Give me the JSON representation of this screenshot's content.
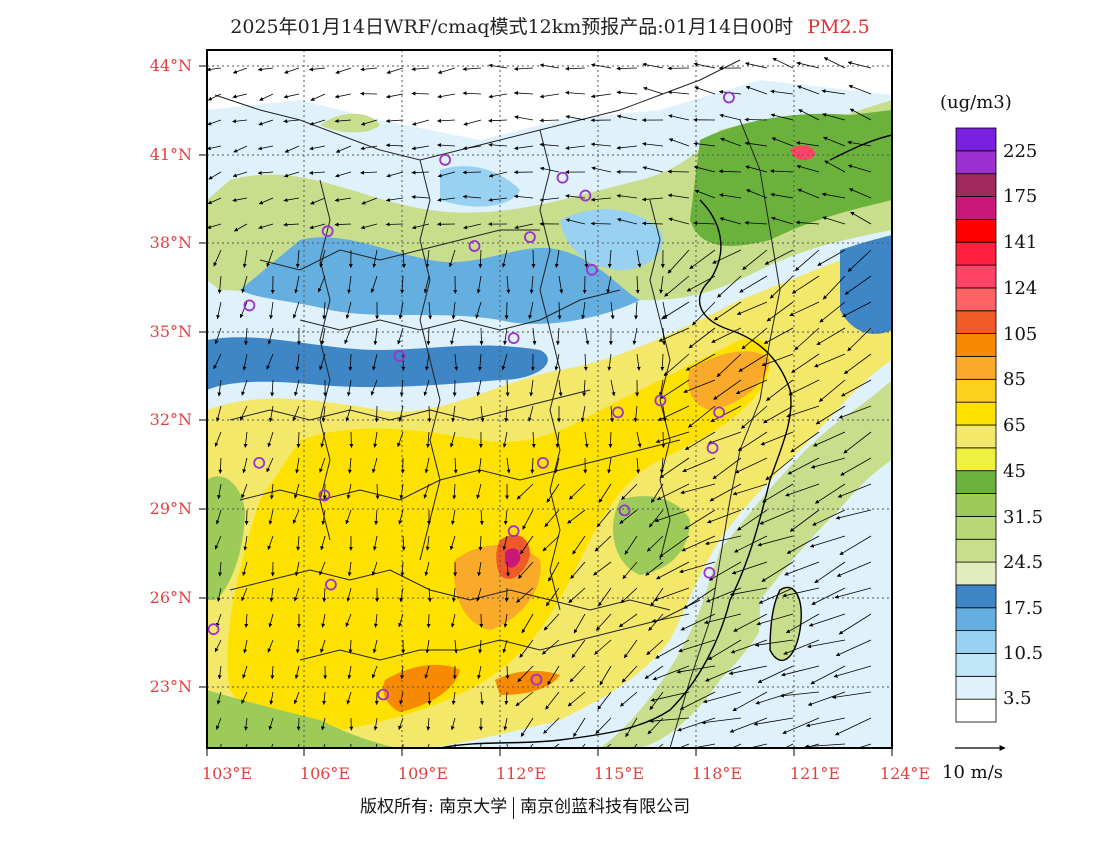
{
  "title": {
    "text": "2025年01月14日WRF/cmaq模式12km预报产品:01月14日00时",
    "pollutant": "PM2.5"
  },
  "map": {
    "lat_labels": [
      "44°N",
      "41°N",
      "38°N",
      "35°N",
      "32°N",
      "29°N",
      "26°N",
      "23°N"
    ],
    "lon_labels": [
      "103°E",
      "106°E",
      "109°E",
      "112°E",
      "115°E",
      "118°E",
      "121°E",
      "124°E"
    ],
    "lat_range": [
      21,
      44.5
    ],
    "lon_range": [
      103,
      124
    ],
    "colors": {
      "frame": "#000000",
      "axis_labels": "#e04040",
      "station_markers": "#9933cc",
      "wind_arrows": "#000000",
      "borders": "#222222"
    }
  },
  "stations": [
    {
      "lon": 119.0,
      "lat": 42.9
    },
    {
      "lon": 110.3,
      "lat": 40.8
    },
    {
      "lon": 113.9,
      "lat": 40.2
    },
    {
      "lon": 114.6,
      "lat": 39.6
    },
    {
      "lon": 106.7,
      "lat": 38.4
    },
    {
      "lon": 111.2,
      "lat": 37.9
    },
    {
      "lon": 112.9,
      "lat": 38.2
    },
    {
      "lon": 114.8,
      "lat": 37.1
    },
    {
      "lon": 104.3,
      "lat": 35.9
    },
    {
      "lon": 112.4,
      "lat": 34.8
    },
    {
      "lon": 108.9,
      "lat": 34.2
    },
    {
      "lon": 115.6,
      "lat": 32.3
    },
    {
      "lon": 116.9,
      "lat": 32.7
    },
    {
      "lon": 118.7,
      "lat": 32.3
    },
    {
      "lon": 118.5,
      "lat": 31.1
    },
    {
      "lon": 104.6,
      "lat": 30.6
    },
    {
      "lon": 106.6,
      "lat": 29.5
    },
    {
      "lon": 113.3,
      "lat": 30.6
    },
    {
      "lon": 115.8,
      "lat": 29.0
    },
    {
      "lon": 112.4,
      "lat": 28.3
    },
    {
      "lon": 106.8,
      "lat": 26.5
    },
    {
      "lon": 118.4,
      "lat": 26.9
    },
    {
      "lon": 103.2,
      "lat": 25.0
    },
    {
      "lon": 108.4,
      "lat": 22.8
    },
    {
      "lon": 113.1,
      "lat": 23.3
    }
  ],
  "colorbar": {
    "unit": "(ug/m3)",
    "colors": [
      "#ffffff",
      "#dff2fb",
      "#bfe5f7",
      "#98d1f2",
      "#64afe0",
      "#3f86c6",
      "#e2ecc0",
      "#c8de8c",
      "#b8d878",
      "#9ccb59",
      "#6ab23c",
      "#f0f040",
      "#f4e86a",
      "#ffe100",
      "#fcd21e",
      "#f9aa2a",
      "#f78a00",
      "#ef5a28",
      "#ff6262",
      "#ff4466",
      "#ff2040",
      "#ff0000",
      "#c8187a",
      "#a0285a",
      "#9b2fd0",
      "#7a20e0"
    ],
    "labels": [
      "3.5",
      "10.5",
      "17.5",
      "24.5",
      "31.5",
      "45",
      "65",
      "85",
      "105",
      "124",
      "141",
      "175",
      "225"
    ]
  },
  "vector_reference": {
    "label": "10 m/s"
  },
  "footer": {
    "copyright": "版权所有: 南京大学",
    "company": "南京创蓝科技有限公司"
  }
}
